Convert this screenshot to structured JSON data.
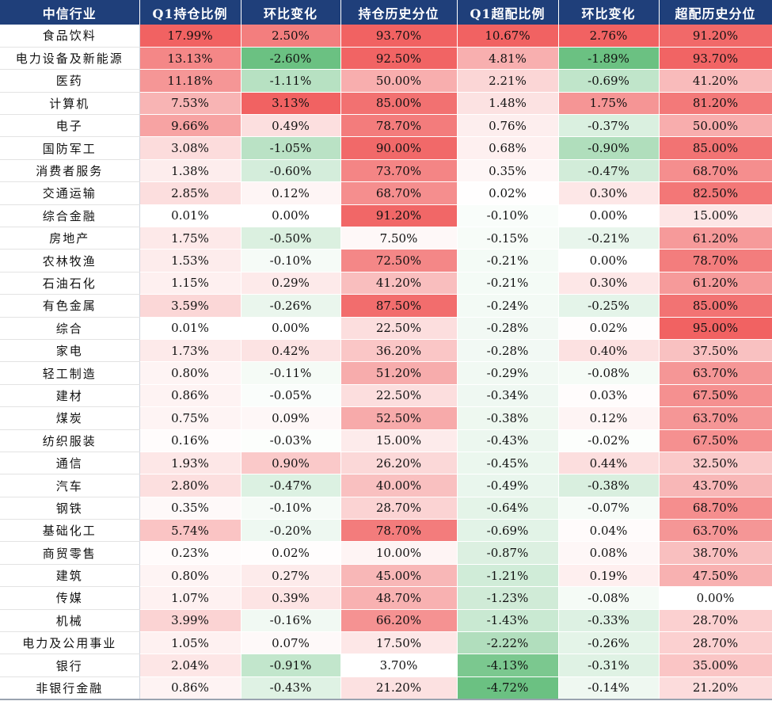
{
  "headers": [
    "中信行业",
    "Q1持仓比例",
    "环比变化",
    "持仓历史分位",
    "Q1超配比例",
    "环比变化",
    "超配历史分位"
  ],
  "rows": [
    [
      "食品饮料",
      "17.99%",
      "2.50%",
      "93.70%",
      "10.67%",
      "2.76%",
      "91.20%"
    ],
    [
      "电力设备及新能源",
      "13.13%",
      "-2.60%",
      "92.50%",
      "4.81%",
      "-1.89%",
      "93.70%"
    ],
    [
      "医药",
      "11.18%",
      "-1.11%",
      "50.00%",
      "2.21%",
      "-0.69%",
      "41.20%"
    ],
    [
      "计算机",
      "7.53%",
      "3.13%",
      "85.00%",
      "1.48%",
      "1.75%",
      "81.20%"
    ],
    [
      "电子",
      "9.66%",
      "0.49%",
      "78.70%",
      "0.76%",
      "-0.37%",
      "50.00%"
    ],
    [
      "国防军工",
      "3.08%",
      "-1.05%",
      "90.00%",
      "0.68%",
      "-0.90%",
      "85.00%"
    ],
    [
      "消费者服务",
      "1.38%",
      "-0.60%",
      "73.70%",
      "0.35%",
      "-0.47%",
      "68.70%"
    ],
    [
      "交通运输",
      "2.85%",
      "0.12%",
      "68.70%",
      "0.02%",
      "0.30%",
      "82.50%"
    ],
    [
      "综合金融",
      "0.01%",
      "0.00%",
      "91.20%",
      "-0.10%",
      "0.00%",
      "15.00%"
    ],
    [
      "房地产",
      "1.75%",
      "-0.50%",
      "7.50%",
      "-0.15%",
      "-0.21%",
      "61.20%"
    ],
    [
      "农林牧渔",
      "1.53%",
      "-0.10%",
      "72.50%",
      "-0.21%",
      "0.00%",
      "78.70%"
    ],
    [
      "石油石化",
      "1.15%",
      "0.29%",
      "41.20%",
      "-0.21%",
      "0.30%",
      "61.20%"
    ],
    [
      "有色金属",
      "3.59%",
      "-0.26%",
      "87.50%",
      "-0.24%",
      "-0.25%",
      "85.00%"
    ],
    [
      "综合",
      "0.01%",
      "0.00%",
      "22.50%",
      "-0.28%",
      "0.02%",
      "95.00%"
    ],
    [
      "家电",
      "1.73%",
      "0.42%",
      "36.20%",
      "-0.28%",
      "0.40%",
      "37.50%"
    ],
    [
      "轻工制造",
      "0.80%",
      "-0.11%",
      "51.20%",
      "-0.29%",
      "-0.08%",
      "63.70%"
    ],
    [
      "建材",
      "0.86%",
      "-0.05%",
      "22.50%",
      "-0.34%",
      "0.03%",
      "67.50%"
    ],
    [
      "煤炭",
      "0.75%",
      "0.09%",
      "52.50%",
      "-0.38%",
      "0.12%",
      "63.70%"
    ],
    [
      "纺织服装",
      "0.16%",
      "-0.03%",
      "15.00%",
      "-0.43%",
      "-0.02%",
      "67.50%"
    ],
    [
      "通信",
      "1.93%",
      "0.90%",
      "26.20%",
      "-0.45%",
      "0.44%",
      "32.50%"
    ],
    [
      "汽车",
      "2.80%",
      "-0.47%",
      "40.00%",
      "-0.49%",
      "-0.38%",
      "43.70%"
    ],
    [
      "钢铁",
      "0.35%",
      "-0.10%",
      "28.70%",
      "-0.64%",
      "-0.07%",
      "68.70%"
    ],
    [
      "基础化工",
      "5.74%",
      "-0.20%",
      "78.70%",
      "-0.69%",
      "0.04%",
      "63.70%"
    ],
    [
      "商贸零售",
      "0.23%",
      "0.02%",
      "10.00%",
      "-0.87%",
      "0.08%",
      "38.70%"
    ],
    [
      "建筑",
      "0.80%",
      "0.27%",
      "45.00%",
      "-1.21%",
      "0.19%",
      "47.50%"
    ],
    [
      "传媒",
      "1.07%",
      "0.39%",
      "48.70%",
      "-1.23%",
      "-0.08%",
      "0.00%"
    ],
    [
      "机械",
      "3.99%",
      "-0.16%",
      "66.20%",
      "-1.43%",
      "-0.33%",
      "28.70%"
    ],
    [
      "电力及公用事业",
      "1.05%",
      "0.07%",
      "17.50%",
      "-2.22%",
      "-0.26%",
      "28.70%"
    ],
    [
      "银行",
      "2.04%",
      "-0.91%",
      "3.70%",
      "-4.13%",
      "-0.31%",
      "35.00%"
    ],
    [
      "非银行金融",
      "0.86%",
      "-0.43%",
      "21.20%",
      "-4.72%",
      "-0.14%",
      "21.20%"
    ]
  ],
  "colors": {
    "header_bg": "#1f3f7a",
    "header_text": "#ffffff",
    "positive": "#f05a5a",
    "negative": "#63be7b",
    "neutral": "#ffffff"
  }
}
